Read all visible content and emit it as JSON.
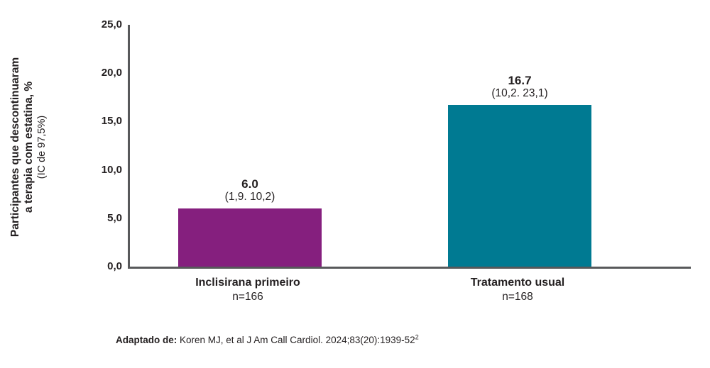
{
  "chart_data": {
    "type": "bar",
    "categories": [
      "Inclisirana primeiro",
      "Tratamento usual"
    ],
    "n_labels": [
      "n=166",
      "n=168"
    ],
    "values": [
      6.0,
      16.7
    ],
    "value_labels": [
      "6.0",
      "16.7"
    ],
    "ci_labels": [
      "(1,9. 10,2)",
      "(10,2. 23,1)"
    ],
    "bar_colors": [
      "#851f7e",
      "#007a92"
    ],
    "ylabel_line1": "Participantes que descontinuaram",
    "ylabel_line2": "a terapia com estatina, %",
    "ylabel_line3": "(IC de 97,5%)",
    "ylim": [
      0,
      25
    ],
    "yticks": [
      "25,0",
      "20,0",
      "15,0",
      "10,0",
      "5,0",
      "0,0"
    ],
    "ytick_values": [
      25,
      20,
      15,
      10,
      5,
      0
    ],
    "grid": "off",
    "legend": "none",
    "title": ""
  },
  "footer": {
    "prefix": "Adaptado de:",
    "citation": " Koren MJ, et al J Am Call Cardiol. 2024;83(20):1939-52",
    "superscript": "2"
  },
  "colors": {
    "axis": "#58595b",
    "text": "#231f20",
    "bar_inclisirana": "#851f7e",
    "bar_tratamento": "#007a92",
    "background": "#ffffff"
  }
}
